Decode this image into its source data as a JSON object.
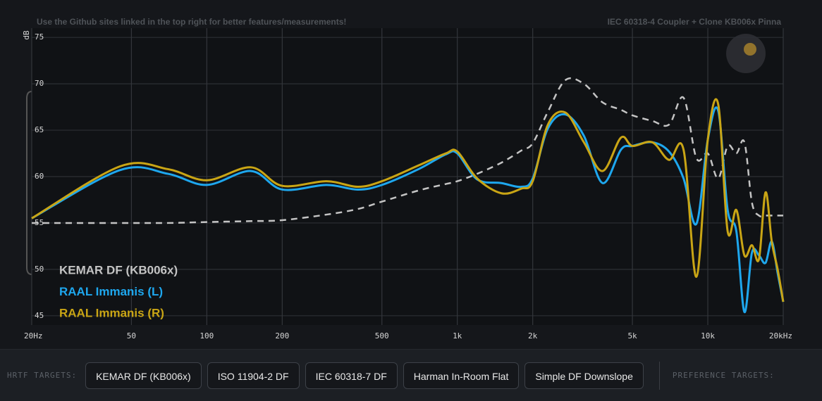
{
  "chart_data": {
    "type": "line",
    "note_left": "Use the Github sites linked in the top right for better features/measurements!",
    "note_right": "IEC 60318-4 Coupler + Clone KB006x Pinna",
    "y_label": "dB",
    "xscale": "log",
    "xlim": [
      20,
      20000
    ],
    "ylim": [
      44,
      76
    ],
    "xticks": [
      {
        "value": 20,
        "label": "20Hz"
      },
      50,
      100,
      200,
      500,
      {
        "value": 1000,
        "label": "1k"
      },
      {
        "value": 2000,
        "label": "2k"
      },
      {
        "value": 5000,
        "label": "5k"
      },
      {
        "value": 10000,
        "label": "10k"
      },
      {
        "value": 20000,
        "label": "20kHz"
      }
    ],
    "yticks": [
      45,
      50,
      55,
      60,
      65,
      70,
      75
    ],
    "grid": true,
    "legend": "lower left",
    "x": [
      20,
      45,
      70,
      100,
      150,
      200,
      300,
      400,
      500,
      700,
      900,
      1000,
      1200,
      1500,
      1800,
      2000,
      2300,
      2700,
      3200,
      3800,
      4500,
      5000,
      6000,
      7000,
      8000,
      9000,
      10000,
      11000,
      12000,
      13000,
      14000,
      15000,
      16000,
      17000,
      18000,
      19000,
      20000
    ],
    "series": [
      {
        "name": "KEMAR DF (KB006x)",
        "color": "#c4c4c4",
        "dashed": true,
        "values": [
          55.0,
          55.0,
          55.0,
          55.1,
          55.2,
          55.3,
          55.9,
          56.5,
          57.3,
          58.5,
          59.2,
          59.5,
          60.3,
          61.5,
          62.8,
          63.6,
          67.0,
          70.4,
          70.0,
          68.0,
          67.2,
          66.6,
          66.0,
          65.6,
          68.5,
          62.0,
          62.5,
          59.8,
          63.3,
          62.5,
          63.7,
          57.2,
          55.8,
          55.8,
          55.8,
          55.8,
          55.8
        ]
      },
      {
        "name": "RAAL Immanis (L)",
        "color": "#1ea7ee",
        "dashed": false,
        "values": [
          55.5,
          60.7,
          60.3,
          59.1,
          60.6,
          58.6,
          59.1,
          58.6,
          59.1,
          60.8,
          62.4,
          62.5,
          59.7,
          59.3,
          58.9,
          59.8,
          65.2,
          66.7,
          64.4,
          59.3,
          62.9,
          63.3,
          63.7,
          62.7,
          59.8,
          54.9,
          64.0,
          67.1,
          56.4,
          54.1,
          45.4,
          51.8,
          51.5,
          50.7,
          53.0,
          49.6,
          46.5
        ]
      },
      {
        "name": "RAAL Immanis (R)",
        "color": "#c9a515",
        "dashed": false,
        "values": [
          55.5,
          61.1,
          60.8,
          59.6,
          61.0,
          59.0,
          59.5,
          58.9,
          59.5,
          61.2,
          62.5,
          62.7,
          59.8,
          58.2,
          58.7,
          59.5,
          65.6,
          66.9,
          63.7,
          60.6,
          64.2,
          63.3,
          63.7,
          61.8,
          62.9,
          49.2,
          64.0,
          67.8,
          54.1,
          56.4,
          51.5,
          52.6,
          51.1,
          58.3,
          53.0,
          50.0,
          46.5
        ]
      }
    ]
  },
  "toolbar": {
    "hrtf_label": "HRTF TARGETS:",
    "hrtf_targets": [
      "KEMAR DF (KB006x)",
      "ISO 11904-2 DF",
      "IEC 60318-7 DF",
      "Harman In-Room Flat",
      "Simple DF Downslope"
    ],
    "preference_label": "PREFERENCE TARGETS:"
  }
}
